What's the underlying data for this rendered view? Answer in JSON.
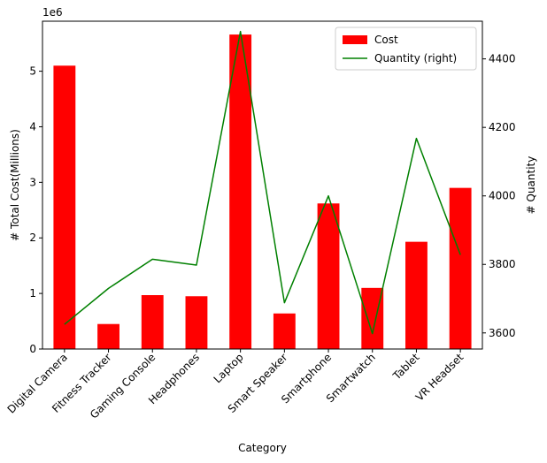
{
  "chart_data": {
    "type": "bar",
    "title": "",
    "xlabel": "Category",
    "ylabel": "# Total Cost(Millions)",
    "y_offset_label": "1e6",
    "y2label": "# Quantity",
    "categories": [
      "Digital Camera",
      "Fitness Tracker",
      "Gaming Console",
      "Headphones",
      "Laptop",
      "Smart Speaker",
      "Smartphone",
      "Smartwatch",
      "Tablet",
      "VR Headset"
    ],
    "series": [
      {
        "name": "Cost",
        "type": "bar",
        "axis": "left",
        "color": "#ff0000",
        "values": [
          5100000,
          450000,
          970000,
          950000,
          5660000,
          640000,
          2620000,
          1100000,
          1930000,
          2900000
        ]
      },
      {
        "name": "Quantity (right)",
        "type": "line",
        "axis": "right",
        "color": "#008000",
        "values": [
          3625,
          3730,
          3815,
          3798,
          4480,
          3688,
          4000,
          3598,
          4168,
          3828
        ]
      }
    ],
    "ylim": [
      0,
      5900000
    ],
    "y_ticks": [
      0,
      1000000,
      2000000,
      3000000,
      4000000,
      5000000
    ],
    "y_tick_labels": [
      "0",
      "1",
      "2",
      "3",
      "4",
      "5"
    ],
    "y2lim": [
      3553,
      4510
    ],
    "y2_ticks": [
      3600,
      3800,
      4000,
      4200,
      4400
    ],
    "y2_tick_labels": [
      "3600",
      "3800",
      "4000",
      "4200",
      "4400"
    ],
    "grid": false,
    "legend_position": "top-right"
  }
}
